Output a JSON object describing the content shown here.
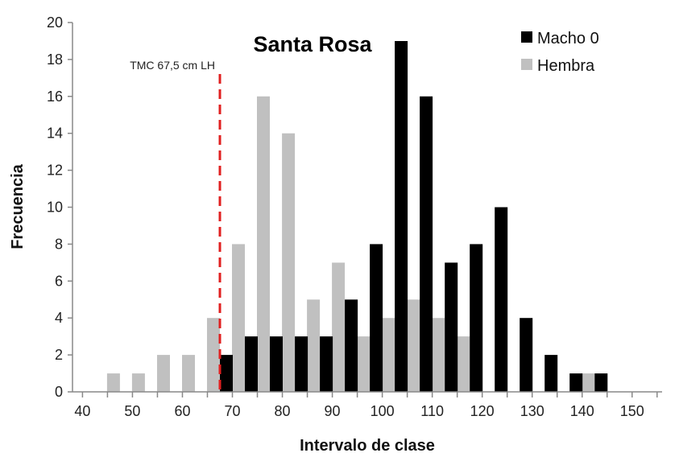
{
  "chart_data": {
    "type": "bar",
    "title": "Santa Rosa",
    "xlabel": "Intervalo de clase",
    "ylabel": "Frecuencia",
    "xlim": [
      38,
      156
    ],
    "ylim": [
      0,
      20
    ],
    "x_ticks": [
      40,
      50,
      60,
      70,
      80,
      90,
      100,
      110,
      120,
      130,
      140,
      150
    ],
    "y_ticks": [
      0,
      2,
      4,
      6,
      8,
      10,
      12,
      14,
      16,
      18,
      20
    ],
    "grid": false,
    "legend_position": "top-right",
    "colors": {
      "macho": "#000000",
      "hembra": "#c0c0c0",
      "reference": "#e02020",
      "axis": "#888888"
    },
    "series": [
      {
        "name": "Macho 0",
        "x": [
          67.5,
          72.5,
          77.5,
          82.5,
          87.5,
          92.5,
          97.5,
          102.5,
          107.5,
          112.5,
          117.5,
          122.5,
          127.5,
          132.5,
          137.5,
          142.5
        ],
        "values": [
          2,
          3,
          3,
          3,
          3,
          5,
          8,
          19,
          16,
          7,
          8,
          10,
          4,
          2,
          1,
          1
        ]
      },
      {
        "name": "Hembra",
        "x": [
          47.5,
          52.5,
          57.5,
          62.5,
          67.5,
          72.5,
          77.5,
          82.5,
          87.5,
          92.5,
          97.5,
          102.5,
          107.5,
          112.5,
          117.5,
          122.5,
          127.5,
          132.5,
          137.5,
          142.5
        ],
        "values": [
          1,
          1,
          2,
          2,
          4,
          8,
          16,
          14,
          5,
          7,
          3,
          4,
          5,
          4,
          3,
          0,
          0,
          0,
          0,
          1
        ]
      }
    ],
    "reference_line": {
      "x": 67.5,
      "label": "TMC 67,5 cm LH"
    }
  }
}
